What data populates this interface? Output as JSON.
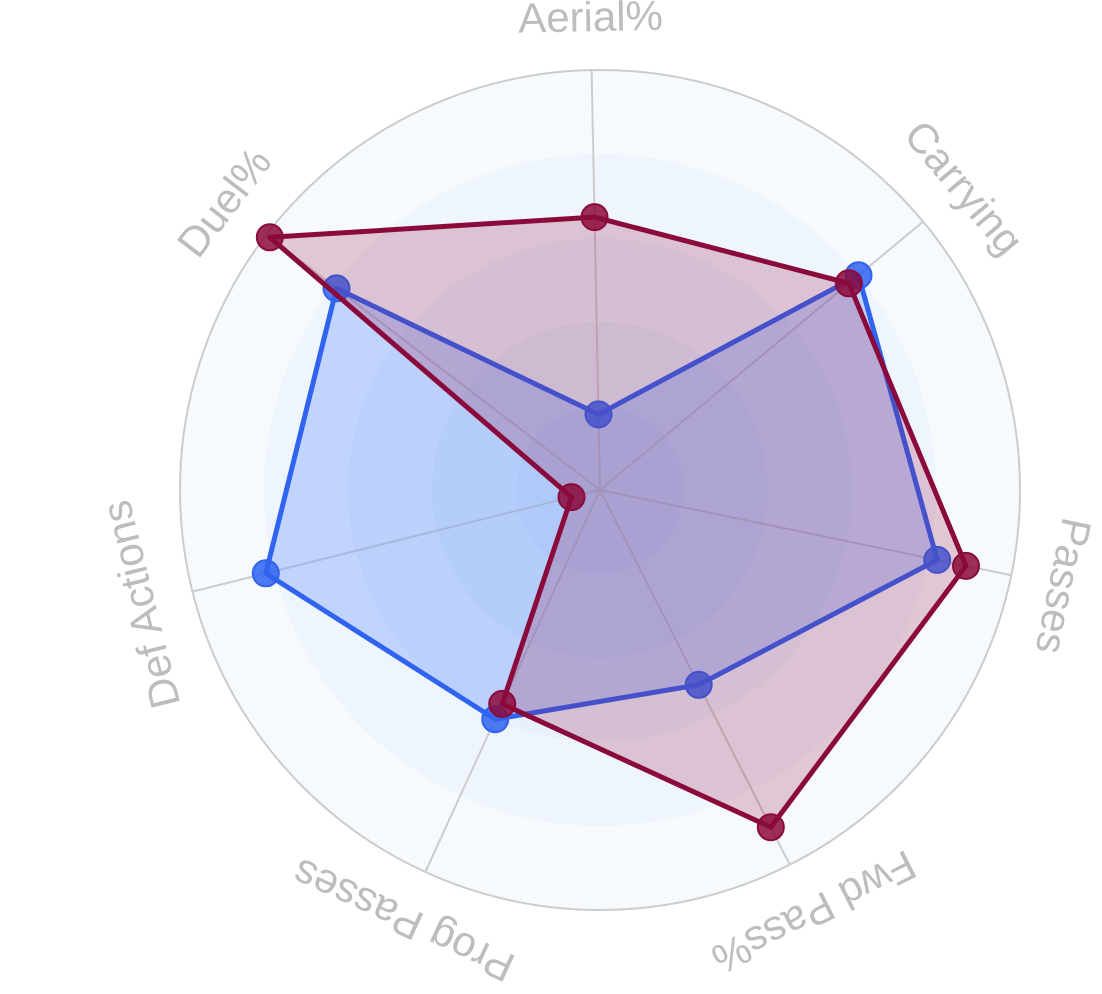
{
  "chart_data": {
    "type": "radar",
    "axes": [
      "Aerial%",
      "Carrying",
      "Passes",
      "Fwd Pass%",
      "Prog Passes",
      "Def Actions",
      "Duel%"
    ],
    "series": [
      {
        "values": [
          0.18,
          0.8,
          0.82,
          0.52,
          0.6,
          0.82,
          0.79
        ]
      },
      {
        "values": [
          0.65,
          0.77,
          0.89,
          0.9,
          0.56,
          0.07,
          0.99
        ]
      }
    ],
    "range": [
      0,
      1
    ],
    "grid": true
  },
  "colors": {
    "series": [
      "#2f63f0",
      "#8b0a3c"
    ],
    "series_fill": [
      "rgba(85,135,255,0.30)",
      "rgba(150,20,70,0.22)"
    ],
    "rings": [
      "#f7fafd",
      "#eff5fc",
      "#e7f0fb",
      "#deebfa",
      "#d5e5f8"
    ],
    "grid_line": "#cccccc",
    "label": "#bdbdbd"
  }
}
